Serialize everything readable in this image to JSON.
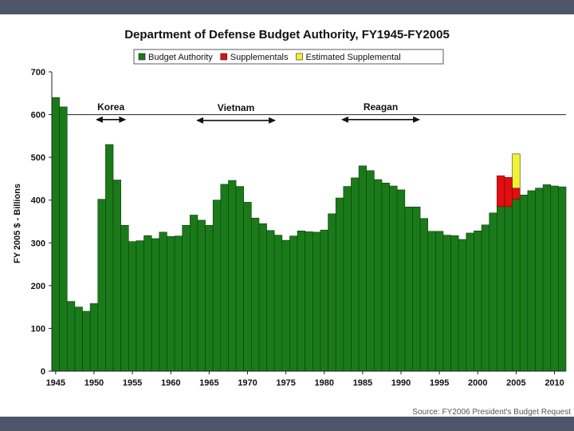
{
  "chart_data": {
    "type": "bar",
    "title": "Department of Defense Budget Authority, FY1945-FY2005",
    "ylabel": "FY 2005 $ - Billions",
    "xlabel": "",
    "ylim": [
      0,
      700
    ],
    "yticks": [
      0,
      100,
      200,
      300,
      400,
      500,
      600,
      700
    ],
    "xlim": [
      1944.5,
      2011.5
    ],
    "xticks": [
      1945,
      1950,
      1955,
      1960,
      1965,
      1970,
      1975,
      1980,
      1985,
      1990,
      1995,
      2000,
      2005,
      2010
    ],
    "gridlines": [
      600
    ],
    "legend": [
      {
        "name": "Budget Authority",
        "color": "#1a7a1a"
      },
      {
        "name": "Supplementals",
        "color": "#e01010"
      },
      {
        "name": "Estimated Supplemental",
        "color": "#f2f230"
      }
    ],
    "years": [
      1945,
      1946,
      1947,
      1948,
      1949,
      1950,
      1951,
      1952,
      1953,
      1954,
      1955,
      1956,
      1957,
      1958,
      1959,
      1960,
      1961,
      1962,
      1963,
      1964,
      1965,
      1966,
      1967,
      1968,
      1969,
      1970,
      1971,
      1972,
      1973,
      1974,
      1975,
      1976,
      1977,
      1978,
      1979,
      1980,
      1981,
      1982,
      1983,
      1984,
      1985,
      1986,
      1987,
      1988,
      1989,
      1990,
      1991,
      1992,
      1993,
      1994,
      1995,
      1996,
      1997,
      1998,
      1999,
      2000,
      2001,
      2002,
      2003,
      2004,
      2005,
      2006,
      2007,
      2008,
      2009,
      2010,
      2011
    ],
    "budget_authority": [
      640,
      618,
      163,
      150,
      140,
      158,
      402,
      530,
      447,
      341,
      303,
      305,
      317,
      310,
      325,
      315,
      316,
      341,
      365,
      353,
      341,
      400,
      437,
      446,
      432,
      395,
      358,
      345,
      329,
      318,
      306,
      316,
      328,
      326,
      325,
      330,
      368,
      405,
      432,
      452,
      480,
      469,
      448,
      440,
      433,
      424,
      384,
      384,
      357,
      327,
      327,
      318,
      317,
      308,
      323,
      328,
      342,
      370,
      385,
      385,
      402,
      412,
      422,
      428,
      436,
      433,
      431
    ],
    "supplementals": [
      0,
      0,
      0,
      0,
      0,
      0,
      0,
      0,
      0,
      0,
      0,
      0,
      0,
      0,
      0,
      0,
      0,
      0,
      0,
      0,
      0,
      0,
      0,
      0,
      0,
      0,
      0,
      0,
      0,
      0,
      0,
      0,
      0,
      0,
      0,
      0,
      0,
      0,
      0,
      0,
      0,
      0,
      0,
      0,
      0,
      0,
      0,
      0,
      0,
      0,
      0,
      0,
      0,
      0,
      0,
      0,
      0,
      0,
      72,
      68,
      26,
      0,
      0,
      0,
      0,
      0,
      0
    ],
    "estimated_supplemental": [
      0,
      0,
      0,
      0,
      0,
      0,
      0,
      0,
      0,
      0,
      0,
      0,
      0,
      0,
      0,
      0,
      0,
      0,
      0,
      0,
      0,
      0,
      0,
      0,
      0,
      0,
      0,
      0,
      0,
      0,
      0,
      0,
      0,
      0,
      0,
      0,
      0,
      0,
      0,
      0,
      0,
      0,
      0,
      0,
      0,
      0,
      0,
      0,
      0,
      0,
      0,
      0,
      0,
      0,
      0,
      0,
      0,
      0,
      0,
      0,
      80,
      0,
      0,
      0,
      0,
      0,
      0
    ],
    "annotations": [
      {
        "label": "Korea",
        "from": 1950.2,
        "to": 1954.2,
        "y": 620
      },
      {
        "label": "Vietnam",
        "from": 1963.3,
        "to": 1973.7,
        "y": 618
      },
      {
        "label": "Reagan",
        "from": 1982.2,
        "to": 1992.5,
        "y": 620
      }
    ],
    "source": "Source: FY2006 President's Budget Request"
  }
}
